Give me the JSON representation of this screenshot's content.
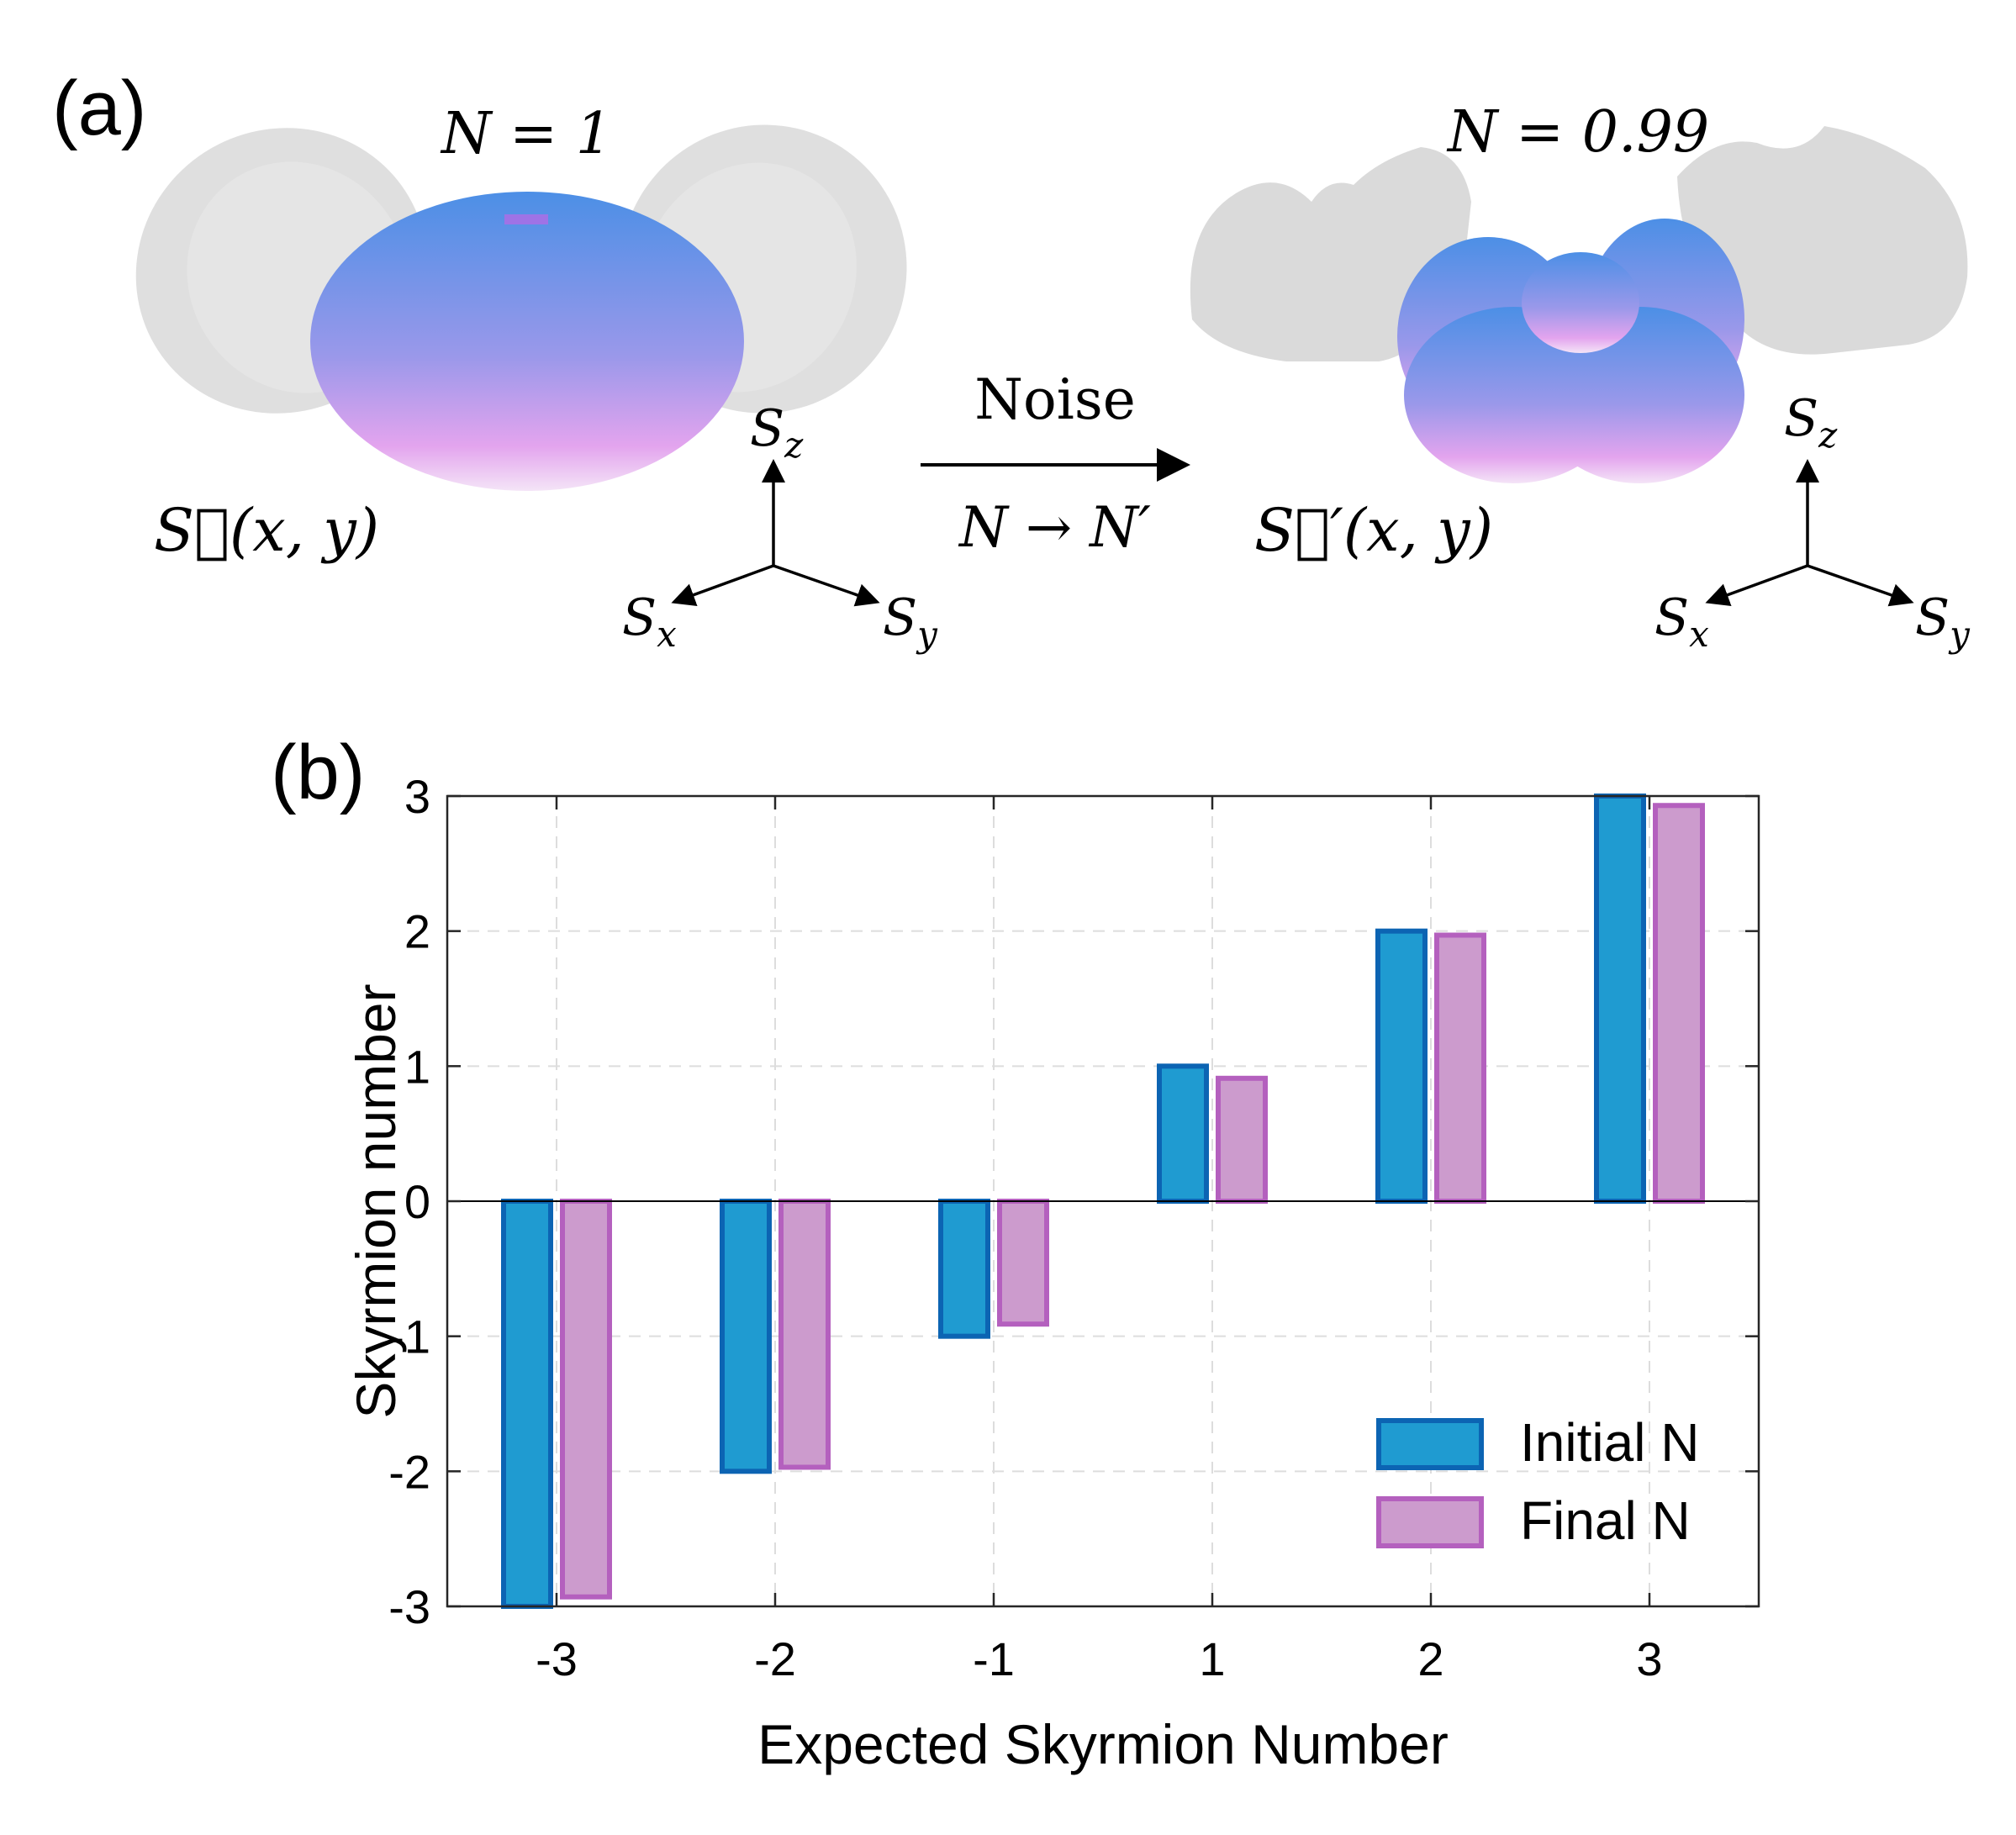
{
  "panel_a": {
    "label": "(a)",
    "left": {
      "n_label": "N = 1",
      "field_label": "S⃗(x, y)"
    },
    "right": {
      "n_label": "N = 0.99",
      "field_label": "S⃗′(x, y)"
    },
    "arrow": {
      "top": "Noise",
      "bottom": "N → N′"
    },
    "axes": {
      "z": "Sz",
      "x": "Sx",
      "y": "Sy"
    },
    "colors": {
      "sphere_top": "#4c8fe6",
      "sphere_bottom": "#e8a6ef",
      "shadow": "#d9d9d9"
    }
  },
  "panel_b": {
    "label": "(b)"
  },
  "chart_data": {
    "type": "bar",
    "title": "",
    "xlabel": "Expected Skyrmion Number",
    "ylabel": "Skyrmion number",
    "categories": [
      "-3",
      "-2",
      "-1",
      "1",
      "2",
      "3"
    ],
    "ylim": [
      -3,
      3
    ],
    "yticks": [
      3,
      2,
      1,
      0,
      -1,
      -2,
      -3
    ],
    "ytick_labels": [
      "3",
      "2",
      "1",
      "0",
      "-1",
      "-2",
      "-3"
    ],
    "grid": true,
    "legend_position": "bottom-right",
    "series": [
      {
        "name": "Initial N",
        "values": [
          -3,
          -2,
          -1,
          1,
          2,
          3
        ],
        "fill": "#1f9bd1",
        "stroke": "#0c64b3"
      },
      {
        "name": "Final N",
        "values": [
          -2.93,
          -1.97,
          -0.91,
          0.91,
          1.97,
          2.93
        ],
        "fill": "#cc9bcd",
        "stroke": "#b460be"
      }
    ]
  }
}
